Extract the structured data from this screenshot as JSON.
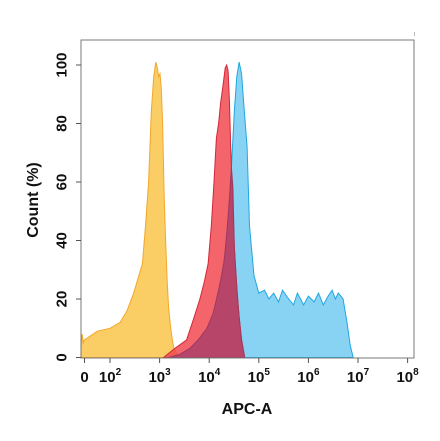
{
  "chart_data": {
    "type": "area",
    "title": "",
    "xlabel": "APC-A",
    "ylabel": "Count (%)",
    "x_scale": "biexponential",
    "xlim": [
      -300,
      100000000
    ],
    "ylim": [
      0,
      108
    ],
    "x_ticks": [
      {
        "value": 0,
        "base": "0",
        "exp": ""
      },
      {
        "value": 100,
        "base": "10",
        "exp": "2"
      },
      {
        "value": 1000,
        "base": "10",
        "exp": "3"
      },
      {
        "value": 10000,
        "base": "10",
        "exp": "4"
      },
      {
        "value": 100000,
        "base": "10",
        "exp": "5"
      },
      {
        "value": 1000000,
        "base": "10",
        "exp": "6"
      },
      {
        "value": 10000000,
        "base": "10",
        "exp": "7"
      },
      {
        "value": 100000000,
        "base": "10",
        "exp": "8"
      }
    ],
    "y_ticks": [
      "0",
      "20",
      "40",
      "60",
      "80",
      "100"
    ],
    "y_tick_values": [
      0,
      20,
      40,
      60,
      80,
      100
    ],
    "grid": false,
    "legend": "none",
    "series": [
      {
        "color": "#f9c342",
        "edge": "#f2a72a",
        "x": [
          -300,
          -200,
          -100,
          0,
          50,
          100,
          160,
          220,
          300,
          380,
          450,
          520,
          600,
          680,
          760,
          840,
          900,
          960,
          1020,
          1080,
          1150,
          1230,
          1320,
          1420,
          1520,
          1650,
          1800,
          1950,
          2100,
          2300,
          2550
        ],
        "y": [
          2,
          8,
          5,
          6,
          9,
          10,
          12,
          16,
          22,
          28,
          32,
          45,
          60,
          84,
          96,
          101,
          99,
          96,
          97,
          92,
          80,
          56,
          40,
          26,
          17,
          11,
          6,
          3,
          2,
          1,
          0
        ]
      },
      {
        "color": "#6ec8f0",
        "edge": "#1fa8e0",
        "x": [
          1500,
          2500,
          4000,
          6000,
          9000,
          12000,
          15000,
          20000,
          24000,
          28000,
          32000,
          36000,
          40000,
          45000,
          50000,
          58000,
          65000,
          80000,
          100000,
          130000,
          160000,
          200000,
          250000,
          300000,
          400000,
          500000,
          600000,
          800000,
          1000000,
          1300000,
          1600000,
          2000000,
          2500000,
          3000000,
          3500000,
          4000000,
          5000000,
          6000000,
          7000000,
          8000000
        ],
        "y": [
          0,
          1,
          3,
          6,
          10,
          15,
          22,
          33,
          48,
          65,
          84,
          96,
          101,
          97,
          86,
          72,
          45,
          28,
          22,
          23,
          20,
          22,
          19,
          23,
          20,
          18,
          22,
          18,
          21,
          19,
          22,
          18,
          21,
          23,
          20,
          22,
          20,
          12,
          4,
          0
        ]
      },
      {
        "color": "#f0434b",
        "edge": "#d0283a",
        "x": [
          1200,
          2000,
          3500,
          5000,
          6500,
          8000,
          9500,
          11000,
          12500,
          14000,
          15500,
          17000,
          19000,
          21000,
          22500,
          24000,
          25500,
          27000,
          29000,
          32000,
          36000,
          40000,
          45000,
          52000
        ],
        "y": [
          0,
          3,
          6,
          14,
          20,
          26,
          32,
          45,
          60,
          75,
          80,
          87,
          93,
          99,
          100,
          98,
          88,
          73,
          58,
          38,
          24,
          14,
          6,
          0
        ]
      },
      {
        "color": "#b0416a",
        "edge": "#a03a5e",
        "x": [
          1500,
          2500,
          4000,
          6000,
          9000,
          12000,
          15000,
          17000,
          20000,
          22000,
          24000,
          26000,
          28000,
          30000,
          32000,
          34000,
          36000,
          38000,
          40000,
          45000,
          52000
        ],
        "y": [
          0,
          1,
          3,
          6,
          10,
          15,
          22,
          26,
          33,
          40,
          48,
          56,
          65,
          58,
          38,
          30,
          24,
          18,
          14,
          6,
          0
        ]
      }
    ]
  }
}
